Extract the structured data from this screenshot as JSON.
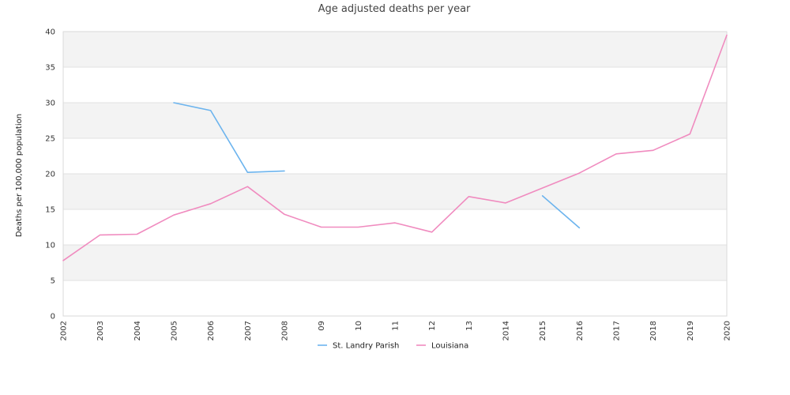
{
  "chart_data": {
    "type": "line",
    "title": "Age adjusted deaths per year",
    "xlabel": "",
    "ylabel": "Deaths per 100,000 population",
    "x": [
      "2002",
      "2003",
      "2004",
      "2005",
      "2006",
      "2007",
      "2008",
      "09",
      "10",
      "11",
      "12",
      "13",
      "2014",
      "2015",
      "2016",
      "2017",
      "2018",
      "2019",
      "2020"
    ],
    "ylim": [
      0,
      40
    ],
    "yticks": [
      0,
      5,
      10,
      15,
      20,
      25,
      30,
      35,
      40
    ],
    "grid": true,
    "legend_position": "bottom",
    "series": [
      {
        "name": "St. Landry Parish",
        "color": "#6cb4ee",
        "values": [
          null,
          null,
          null,
          30.0,
          28.9,
          20.2,
          20.4,
          null,
          null,
          null,
          null,
          null,
          null,
          16.9,
          12.4,
          null,
          null,
          null,
          null
        ]
      },
      {
        "name": "Louisiana",
        "color": "#f08bbf",
        "values": [
          7.8,
          11.4,
          11.5,
          14.2,
          15.8,
          18.2,
          14.3,
          12.5,
          12.5,
          13.1,
          11.8,
          16.8,
          15.9,
          18.0,
          20.1,
          22.8,
          23.3,
          25.6,
          39.5
        ]
      }
    ]
  }
}
